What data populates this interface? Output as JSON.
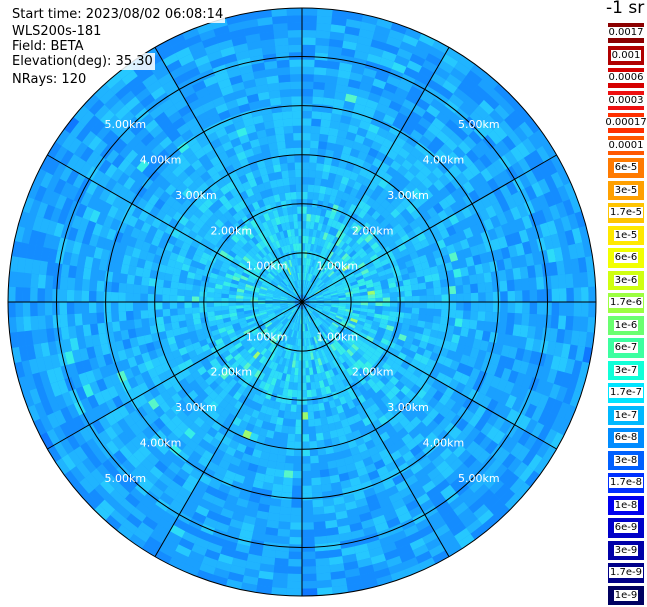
{
  "header": {
    "start_time": "Start time: 2023/08/02 06:08:14",
    "instrument": "WLS200s-181",
    "field": "Field: BETA",
    "elevation": "Elevation(deg): 35.30",
    "nrays": "NRays: 120"
  },
  "colorbar": {
    "unit_label": "-1 sr",
    "labels": [
      "0.0017",
      "0.001",
      "0.0006",
      "0.0003",
      "0.00017",
      "0.0001",
      "6e-5",
      "3e-5",
      "1.7e-5",
      "1e-5",
      "6e-6",
      "3e-6",
      "1.7e-6",
      "1e-6",
      "6e-7",
      "3e-7",
      "1.7e-7",
      "1e-7",
      "6e-8",
      "3e-8",
      "1.7e-8",
      "1e-8",
      "6e-9",
      "3e-9",
      "1.7e-9",
      "1e-9"
    ],
    "colors": [
      "#8b0000",
      "#b00000",
      "#d50000",
      "#ee1010",
      "#ff3000",
      "#ff5800",
      "#ff7a00",
      "#ffa000",
      "#ffc400",
      "#ffe800",
      "#f2ff00",
      "#d0ff10",
      "#9cff40",
      "#6bff70",
      "#3cffa0",
      "#10ffd8",
      "#00e4ff",
      "#00b8ff",
      "#008cff",
      "#0060ff",
      "#0030ff",
      "#0000ee",
      "#0000c8",
      "#0000a8",
      "#000088",
      "#000060"
    ]
  },
  "chart_data": {
    "type": "ppi",
    "title": "",
    "field": "BETA",
    "elevation_deg": 35.3,
    "nrays": 120,
    "range_ring_labels": [
      "1.00km",
      "2.00km",
      "3.00km",
      "4.00km",
      "5.00km"
    ],
    "range_rings_km": [
      1,
      2,
      3,
      4,
      5
    ],
    "spoke_angles_deg": [
      0,
      30,
      60,
      90,
      120,
      150,
      180,
      210,
      240,
      270,
      300,
      330
    ],
    "max_range_km": 5.0
  }
}
